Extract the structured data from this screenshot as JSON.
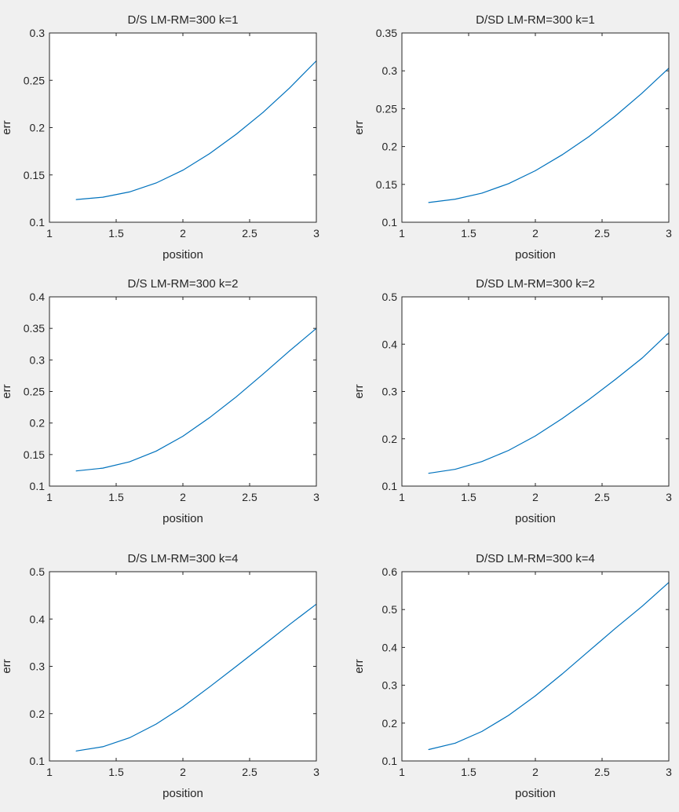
{
  "figure": {
    "background": "#f0f0f0",
    "axes_background": "#ffffff",
    "line_color": "#0072bd",
    "axis_color": "#262626"
  },
  "chart_data": [
    {
      "type": "line",
      "title": "D/S LM-RM=300 k=1",
      "xlabel": "position",
      "ylabel": "err",
      "xlim": [
        1,
        3
      ],
      "ylim": [
        0.1,
        0.3
      ],
      "xticks": [
        "1",
        "1.5",
        "2",
        "2.5",
        "3"
      ],
      "yticks": [
        "0.1",
        "0.15",
        "0.2",
        "0.25",
        "0.3"
      ],
      "grid": false,
      "series": [
        {
          "x": [
            1.2,
            1.4,
            1.6,
            1.8,
            2.0,
            2.2,
            2.4,
            2.6,
            2.8,
            3.0
          ],
          "values": [
            0.124,
            0.1265,
            0.132,
            0.1415,
            0.155,
            0.1725,
            0.193,
            0.216,
            0.242,
            0.2705
          ]
        }
      ]
    },
    {
      "type": "line",
      "title": "D/SD LM-RM=300 k=1",
      "xlabel": "position",
      "ylabel": "err",
      "xlim": [
        1,
        3
      ],
      "ylim": [
        0.1,
        0.35
      ],
      "xticks": [
        "1",
        "1.5",
        "2",
        "2.5",
        "3"
      ],
      "yticks": [
        "0.1",
        "0.15",
        "0.2",
        "0.25",
        "0.3",
        "0.35"
      ],
      "grid": false,
      "series": [
        {
          "x": [
            1.2,
            1.4,
            1.6,
            1.8,
            2.0,
            2.2,
            2.4,
            2.6,
            2.8,
            3.0
          ],
          "values": [
            0.126,
            0.1305,
            0.1385,
            0.151,
            0.168,
            0.189,
            0.213,
            0.2405,
            0.2705,
            0.3035
          ]
        }
      ]
    },
    {
      "type": "line",
      "title": "D/S LM-RM=300 k=2",
      "xlabel": "position",
      "ylabel": "err",
      "xlim": [
        1,
        3
      ],
      "ylim": [
        0.1,
        0.4
      ],
      "xticks": [
        "1",
        "1.5",
        "2",
        "2.5",
        "3"
      ],
      "yticks": [
        "0.1",
        "0.15",
        "0.2",
        "0.25",
        "0.3",
        "0.35",
        "0.4"
      ],
      "grid": false,
      "series": [
        {
          "x": [
            1.2,
            1.4,
            1.6,
            1.8,
            2.0,
            2.2,
            2.4,
            2.6,
            2.8,
            3.0
          ],
          "values": [
            0.124,
            0.1285,
            0.1385,
            0.1555,
            0.179,
            0.2085,
            0.2415,
            0.2775,
            0.3145,
            0.35
          ]
        }
      ]
    },
    {
      "type": "line",
      "title": "D/SD LM-RM=300 k=2",
      "xlabel": "position",
      "ylabel": "err",
      "xlim": [
        1,
        3
      ],
      "ylim": [
        0.1,
        0.5
      ],
      "xticks": [
        "1",
        "1.5",
        "2",
        "2.5",
        "3"
      ],
      "yticks": [
        "0.1",
        "0.2",
        "0.3",
        "0.4",
        "0.5"
      ],
      "grid": false,
      "series": [
        {
          "x": [
            1.2,
            1.4,
            1.6,
            1.8,
            2.0,
            2.2,
            2.4,
            2.6,
            2.8,
            3.0
          ],
          "values": [
            0.127,
            0.1355,
            0.152,
            0.1755,
            0.206,
            0.2425,
            0.2825,
            0.3255,
            0.3705,
            0.424
          ]
        }
      ]
    },
    {
      "type": "line",
      "title": "D/S LM-RM=300 k=4",
      "xlabel": "position",
      "ylabel": "err",
      "xlim": [
        1,
        3
      ],
      "ylim": [
        0.1,
        0.5
      ],
      "xticks": [
        "1",
        "1.5",
        "2",
        "2.5",
        "3"
      ],
      "yticks": [
        "0.1",
        "0.2",
        "0.3",
        "0.4",
        "0.5"
      ],
      "grid": false,
      "series": [
        {
          "x": [
            1.2,
            1.4,
            1.6,
            1.8,
            2.0,
            2.2,
            2.4,
            2.6,
            2.8,
            3.0
          ],
          "values": [
            0.121,
            0.13,
            0.149,
            0.178,
            0.2145,
            0.2565,
            0.3,
            0.344,
            0.3885,
            0.4315
          ]
        }
      ]
    },
    {
      "type": "line",
      "title": "D/SD LM-RM=300 k=4",
      "xlabel": "position",
      "ylabel": "err",
      "xlim": [
        1,
        3
      ],
      "ylim": [
        0.1,
        0.6
      ],
      "xticks": [
        "1",
        "1.5",
        "2",
        "2.5",
        "3"
      ],
      "yticks": [
        "0.1",
        "0.2",
        "0.3",
        "0.4",
        "0.5",
        "0.6"
      ],
      "grid": false,
      "series": [
        {
          "x": [
            1.2,
            1.4,
            1.6,
            1.8,
            2.0,
            2.2,
            2.4,
            2.6,
            2.8,
            3.0
          ],
          "values": [
            0.13,
            0.147,
            0.178,
            0.2205,
            0.272,
            0.3295,
            0.39,
            0.4505,
            0.5085,
            0.5715
          ]
        }
      ]
    }
  ]
}
